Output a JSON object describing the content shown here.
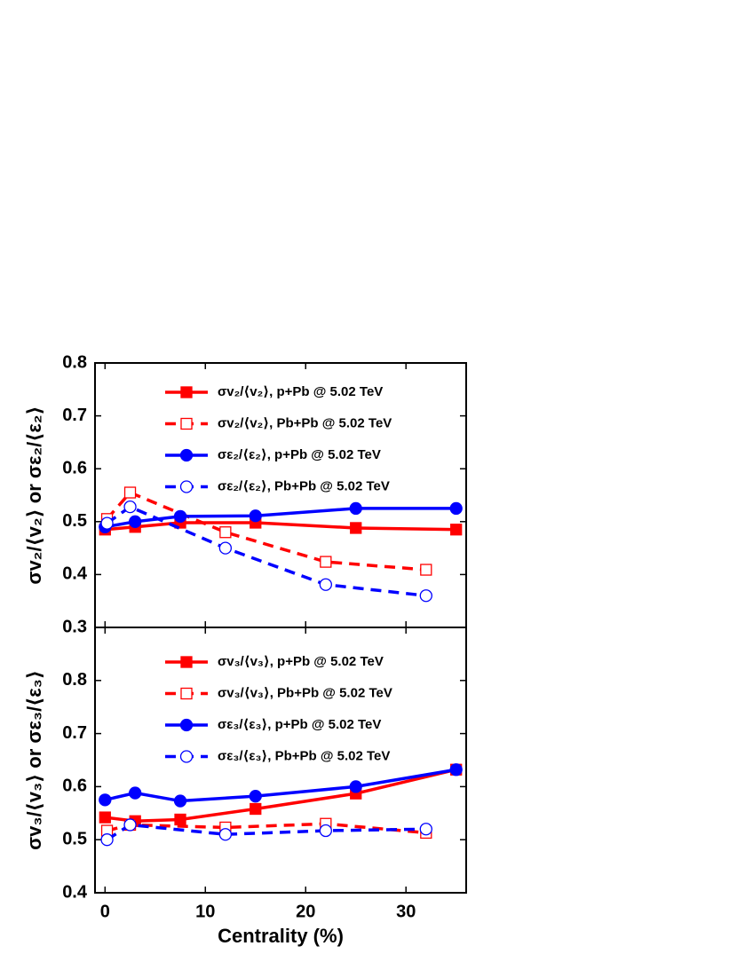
{
  "chart_data": [
    {
      "type": "line",
      "ylabel": "σv₂/⟨v₂⟩ or σε₂/⟨ε₂⟩",
      "xlim": [
        -1,
        36
      ],
      "ylim": [
        0.3,
        0.8
      ],
      "yticks": [
        0.3,
        0.4,
        0.5,
        0.6,
        0.7,
        0.8
      ],
      "series": [
        {
          "name": "σv₂/⟨v₂⟩, p+Pb  @ 5.02 TeV",
          "color": "#ff0000",
          "marker": "square",
          "filled": true,
          "dashed": false,
          "x": [
            0,
            3,
            7.5,
            15,
            25,
            35
          ],
          "values": [
            0.485,
            0.49,
            0.498,
            0.498,
            0.488,
            0.485
          ]
        },
        {
          "name": "σv₂/⟨v₂⟩, Pb+Pb @ 5.02 TeV",
          "color": "#ff0000",
          "marker": "square",
          "filled": false,
          "dashed": true,
          "x": [
            0.2,
            2.5,
            12,
            22,
            32
          ],
          "values": [
            0.505,
            0.555,
            0.48,
            0.424,
            0.409
          ]
        },
        {
          "name": "σε₂/⟨ε₂⟩, p+Pb   @ 5.02 TeV",
          "color": "#0000ff",
          "marker": "circle",
          "filled": true,
          "dashed": false,
          "x": [
            0,
            3,
            7.5,
            15,
            25,
            35
          ],
          "values": [
            0.49,
            0.5,
            0.51,
            0.511,
            0.525,
            0.525
          ]
        },
        {
          "name": "σε₂/⟨ε₂⟩, Pb+Pb @ 5.02 TeV",
          "color": "#0000ff",
          "marker": "circle",
          "filled": false,
          "dashed": true,
          "x": [
            0.2,
            2.5,
            12,
            22,
            32
          ],
          "values": [
            0.497,
            0.528,
            0.45,
            0.381,
            0.36
          ]
        }
      ]
    },
    {
      "type": "line",
      "ylabel": "σv₃/⟨v₃⟩ or σε₃/⟨ε₃⟩",
      "xlabel": "Centrality (%)",
      "xlim": [
        -1,
        36
      ],
      "xticks": [
        0,
        10,
        20,
        30
      ],
      "ylim": [
        0.4,
        0.9
      ],
      "yticks": [
        0.4,
        0.5,
        0.6,
        0.7,
        0.8
      ],
      "series": [
        {
          "name": "σv₃/⟨v₃⟩, p+Pb  @ 5.02 TeV",
          "color": "#ff0000",
          "marker": "square",
          "filled": true,
          "dashed": false,
          "x": [
            0,
            3,
            7.5,
            15,
            25,
            35
          ],
          "values": [
            0.542,
            0.535,
            0.538,
            0.558,
            0.587,
            0.632
          ]
        },
        {
          "name": "σv₃/⟨v₃⟩, Pb+Pb @ 5.02 TeV",
          "color": "#ff0000",
          "marker": "square",
          "filled": false,
          "dashed": true,
          "x": [
            0.2,
            2.5,
            12,
            22,
            32
          ],
          "values": [
            0.517,
            0.528,
            0.523,
            0.53,
            0.513
          ]
        },
        {
          "name": "σε₃/⟨ε₃⟩, p+Pb   @ 5.02 TeV",
          "color": "#0000ff",
          "marker": "circle",
          "filled": true,
          "dashed": false,
          "x": [
            0,
            3,
            7.5,
            15,
            25,
            35
          ],
          "values": [
            0.575,
            0.588,
            0.573,
            0.582,
            0.6,
            0.632
          ]
        },
        {
          "name": "σε₃/⟨ε₃⟩, Pb+Pb @ 5.02 TeV",
          "color": "#0000ff",
          "marker": "circle",
          "filled": false,
          "dashed": true,
          "x": [
            0.2,
            2.5,
            12,
            22,
            32
          ],
          "values": [
            0.5,
            0.528,
            0.51,
            0.517,
            0.52
          ]
        }
      ]
    }
  ]
}
